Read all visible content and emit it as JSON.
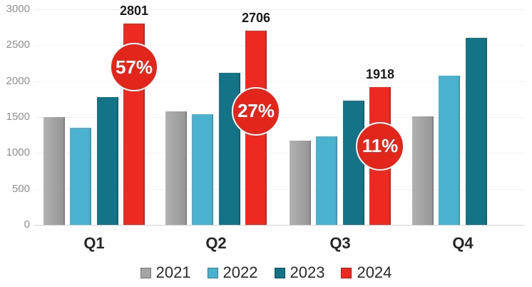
{
  "chart_data": {
    "type": "bar",
    "title": "",
    "xlabel": "",
    "ylabel": "",
    "categories": [
      "Q1",
      "Q2",
      "Q3",
      "Q4"
    ],
    "series": [
      {
        "name": "2021",
        "color": "#a5a5a5",
        "gradient": [
          "#b1b1b1",
          "#959595"
        ],
        "values": [
          1500,
          1580,
          1170,
          1510
        ]
      },
      {
        "name": "2022",
        "color": "#4ab2cf",
        "values": [
          1350,
          1540,
          1230,
          2080
        ]
      },
      {
        "name": "2023",
        "color": "#147387",
        "values": [
          1775,
          2120,
          1730,
          2600
        ]
      },
      {
        "name": "2024",
        "color": "#ed2a21",
        "values": [
          2801,
          2706,
          1918,
          null
        ],
        "data_labels": [
          "2801",
          "2706",
          "1918",
          null
        ]
      }
    ],
    "annotations": [
      {
        "category": "Q1",
        "label": "57%",
        "anchor_value": 2195,
        "color": "#e2261c"
      },
      {
        "category": "Q2",
        "label": "27%",
        "anchor_value": 1580,
        "color": "#e2261c"
      },
      {
        "category": "Q3",
        "label": "11%",
        "anchor_value": 1095,
        "color": "#e2261c"
      }
    ],
    "ylim": [
      0,
      3000
    ],
    "yticks": [
      0,
      500,
      1000,
      1500,
      2000,
      2500,
      3000
    ],
    "grid": "horizontal",
    "legend_position": "bottom",
    "legend": [
      "2021",
      "2022",
      "2023",
      "2024"
    ]
  }
}
